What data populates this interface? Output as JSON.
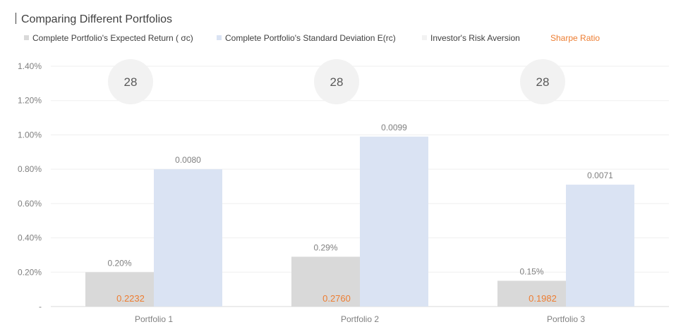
{
  "chart_data": {
    "type": "bar",
    "title": "Comparing Different Portfolios",
    "categories": [
      "Portfolio 1",
      "Portfolio 2",
      "Portfolio 3"
    ],
    "yaxis": {
      "min": 0,
      "max": 0.014,
      "tick_labels": [
        "-",
        "0.20%",
        "0.40%",
        "0.60%",
        "0.80%",
        "1.00%",
        "1.20%",
        "1.40%"
      ],
      "ticks": [
        0,
        0.002,
        0.004,
        0.006,
        0.008,
        0.01,
        0.012,
        0.014
      ]
    },
    "grid": true,
    "legend_position": "top-left",
    "series": [
      {
        "name": "Complete Portfolio's Expected Return ( σc)",
        "color": "#d9d9d9",
        "values": [
          0.002,
          0.0029,
          0.0015
        ],
        "labels": [
          "0.20%",
          "0.29%",
          "0.15%"
        ]
      },
      {
        "name": "Complete Portfolio's Standard Deviation E(rc)",
        "color": "#dae3f3",
        "values": [
          0.008,
          0.0099,
          0.0071
        ],
        "labels": [
          "0.0080",
          "0.0099",
          "0.0071"
        ]
      },
      {
        "name": "Investor's Risk Aversion",
        "color": "#f2f2f2",
        "values": [
          28,
          28,
          28
        ],
        "labels": [
          "28",
          "28",
          "28"
        ]
      },
      {
        "name": "Sharpe Ratio",
        "color": "#ed7d31",
        "values": [
          0.2232,
          0.276,
          0.1982
        ],
        "labels": [
          "0.2232",
          "0.2760",
          "0.1982"
        ]
      }
    ]
  }
}
